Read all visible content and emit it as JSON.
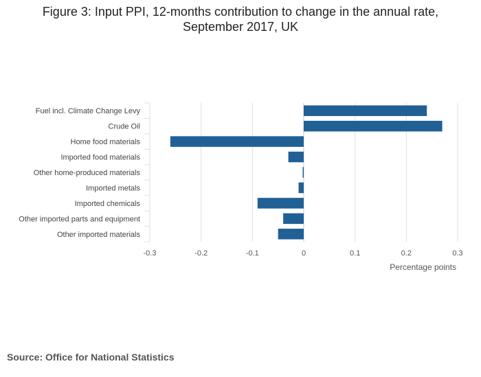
{
  "chart_data": {
    "type": "bar",
    "orientation": "horizontal",
    "title_lines": [
      "Figure 3: Input PPI, 12-months contribution to change in the annual rate,",
      "September 2017, UK"
    ],
    "categories": [
      "Fuel incl. Climate Change Levy",
      "Crude Oil",
      "Home food materials",
      "Imported food materials",
      "Other home-produced materials",
      "Imported metals",
      "Imported chemicals",
      "Other imported parts and equipment",
      "Other imported materials"
    ],
    "values": [
      0.24,
      0.27,
      -0.26,
      -0.03,
      -0.002,
      -0.01,
      -0.09,
      -0.04,
      -0.05
    ],
    "xlabel": "Percentage points",
    "ylabel": "",
    "xlim": [
      -0.3,
      0.3
    ],
    "xticks": [
      "-0.3",
      "-0.2",
      "-0.1",
      "0",
      "0.1",
      "0.2",
      "0.3"
    ],
    "grid": "vertical",
    "bar_color": "#206095",
    "grid_color": "#e0e0e0",
    "zero_line_color": "#c8c8c8"
  },
  "source": "Source: Office for National Statistics"
}
